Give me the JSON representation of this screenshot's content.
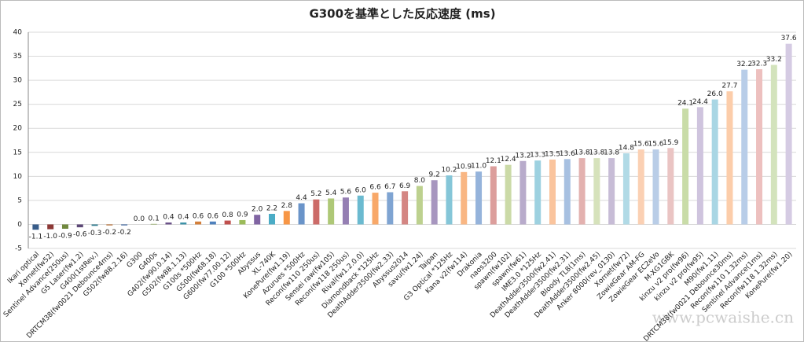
{
  "chart_data": {
    "type": "bar",
    "title": "G300を基準とした反応速度 (ms)",
    "watermark": "www.pcwaishe.cn",
    "categories": [
      "Ikari optical",
      "Xornet(fw52)",
      "Sentinel Advance(250us)",
      "G5 Laser(fw1.2)",
      "G400(1stRev.)",
      "DRTCM38(fw0021 Debounce4ms)",
      "G502(fw88.2.16)",
      "G300",
      "G400s",
      "G402(fw90.0.14)",
      "G502(fw88.1.13)",
      "G100s *500Hz",
      "G500(fw68.18)",
      "G600(fw77.00.12)",
      "G100 *500Hz",
      "Abyssus",
      "XL-740K",
      "KonePure(fw1.19)",
      "Azurues *500Hz",
      "Recon(fw110 250us)",
      "Sensei raw(fw105)",
      "Recon(fw118 250us)",
      "Rival(fw1.2.0.0)",
      "Diamondback *125Hz",
      "DeathAdder3500(fw2.33)",
      "Abyssus2014",
      "savu(fw1.24)",
      "Taipan",
      "G3 Optical *125Hz",
      "Kana v2(fw114)",
      "Drakonia",
      "naos3200",
      "spawn(fw102)",
      "spawn(fw61)",
      "IME3.0 *125Hz",
      "DeathAdder3500(fw2.41)",
      "DeathAdder3500(fw2.31)",
      "Bloody TL8(1ms)",
      "DeathAdder3500(fw2.45)",
      "Anker 8000(rev_0130)",
      "Xornet(fw72)",
      "ZowieGear AM-FG",
      "ZowieGear EC2eVo",
      "M-XG1GBK",
      "kinzu v2 pro(fw96)",
      "kinzu v2 pro(fw95)",
      "M90(fw1.11)",
      "DRTCM38(fw0021 Debounce30ms)",
      "Recon(fw110 1.32ms)",
      "Sentinel Advance(1ms)",
      "Recon(fw118 1.32ms)",
      "KonePure(fw1.20)"
    ],
    "values": [
      -1.1,
      -1.0,
      -0.9,
      -0.6,
      -0.3,
      -0.2,
      -0.2,
      0.0,
      0.1,
      0.4,
      0.4,
      0.6,
      0.6,
      0.8,
      0.9,
      2.0,
      2.2,
      2.8,
      4.4,
      5.2,
      5.4,
      5.6,
      6.0,
      6.6,
      6.7,
      6.9,
      8.0,
      9.2,
      10.2,
      10.9,
      11.0,
      12.1,
      12.4,
      13.2,
      13.3,
      13.5,
      13.6,
      13.8,
      13.8,
      13.8,
      14.8,
      15.6,
      15.6,
      15.9,
      24.1,
      24.4,
      26.0,
      27.7,
      32.2,
      32.3,
      33.2,
      37.6
    ],
    "value_labels": [
      "-1.1",
      "-1.0",
      "-0.9",
      "-0.6",
      "-0.3",
      "-0.2",
      "-0.2",
      "0.0",
      "0.1",
      "0.4",
      "0.4",
      "0.6",
      "0.6",
      "0.8",
      "0.9",
      "2.0",
      "2.2",
      "2.8",
      "4.4",
      "5.2",
      "5.4",
      "5.6",
      "6.0",
      "6.6",
      "6.7",
      "6.9",
      "8.0",
      "9.2",
      "10.2",
      "10.9",
      "11.0",
      "12.1",
      "12.4",
      "13.2",
      "13.3",
      "13.5",
      "13.6",
      "13.8",
      "13.8",
      "13.8",
      "14.8",
      "15.6",
      "15.6",
      "15.9",
      "24.1",
      "24.4",
      "26.0",
      "27.7",
      "32.2",
      "32.3",
      "33.2",
      "37.6"
    ],
    "colors": [
      "#385D8A",
      "#8C3836",
      "#71893F",
      "#5C4776",
      "#357D91",
      "#B66D31",
      "#4068A0",
      "#A13F3C",
      "#82A048",
      "#6B5289",
      "#3D92A8",
      "#D37F3A",
      "#4F81BD",
      "#C0504D",
      "#9BBB59",
      "#8064A2",
      "#4BACC6",
      "#F79646",
      "#6A94C9",
      "#CC6B68",
      "#AEC877",
      "#957FB3",
      "#6BBAD0",
      "#F8A869",
      "#7FA4D2",
      "#D48683",
      "#BDD18F",
      "#A796BF",
      "#85C6D8",
      "#F9B683",
      "#95B3DB",
      "#DC9E9C",
      "#CBDAA7",
      "#B8ABCB",
      "#9DD1E0",
      "#FAC49D",
      "#A7C0E1",
      "#E3B1AF",
      "#D6E2BB",
      "#C7BCD6",
      "#B1DAE6",
      "#FBD0B3",
      "#B9CDE7",
      "#EAC4C3",
      "#C9DCA8",
      "#CFC4DE",
      "#A9D6E4",
      "#FCCDAA",
      "#B8CDE8",
      "#EDC0BF",
      "#D3E3BC",
      "#D5CBE3"
    ],
    "ylim": [
      -5,
      40
    ],
    "yticks": [
      -5,
      0,
      5,
      10,
      15,
      20,
      25,
      30,
      35,
      40
    ],
    "grid": true
  }
}
